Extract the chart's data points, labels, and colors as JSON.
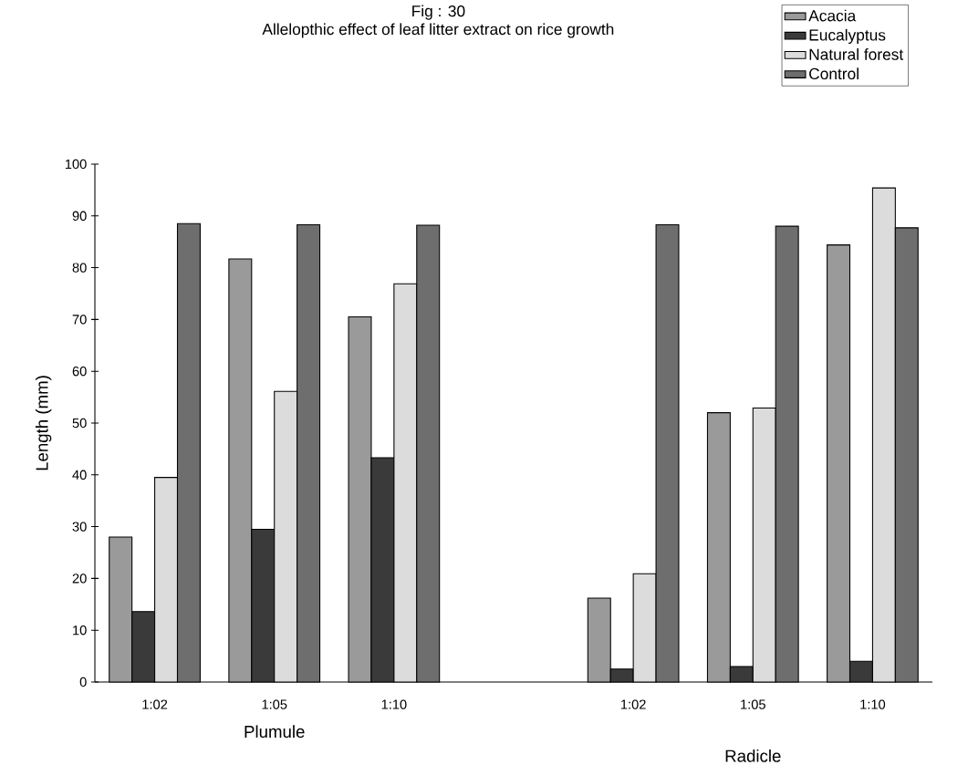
{
  "chart_data": {
    "type": "bar",
    "title": "Fig : 30",
    "subtitle": "Allelopthic effect of leaf litter extract on rice growth",
    "ylabel": "Length (mm)",
    "categories": [
      "1:02",
      "1:05",
      "1:10",
      null,
      "1:02",
      "1:05",
      "1:10"
    ],
    "series": [
      {
        "name": "Acacia",
        "color": "#9a9a9a",
        "values": [
          28,
          81.7,
          70.5,
          null,
          16.2,
          52,
          84.4
        ]
      },
      {
        "name": "Eucalyptus",
        "color": "#3a3a3a",
        "values": [
          13.6,
          29.5,
          43.3,
          null,
          2.5,
          3,
          4
        ]
      },
      {
        "name": "Natural forest",
        "color": "#dcdcdc",
        "values": [
          39.5,
          56.1,
          76.9,
          null,
          20.9,
          52.9,
          95.4
        ]
      },
      {
        "name": "Control",
        "color": "#6e6e6e",
        "values": [
          88.5,
          88.3,
          88.2,
          null,
          88.3,
          88,
          87.7
        ]
      }
    ],
    "ylim": [
      0,
      100
    ],
    "yticks": [
      0,
      10,
      20,
      30,
      40,
      50,
      60,
      70,
      80,
      90,
      100
    ],
    "grid": false,
    "legend": "top right",
    "annotations": [
      "Plumule",
      "Radicle"
    ]
  }
}
